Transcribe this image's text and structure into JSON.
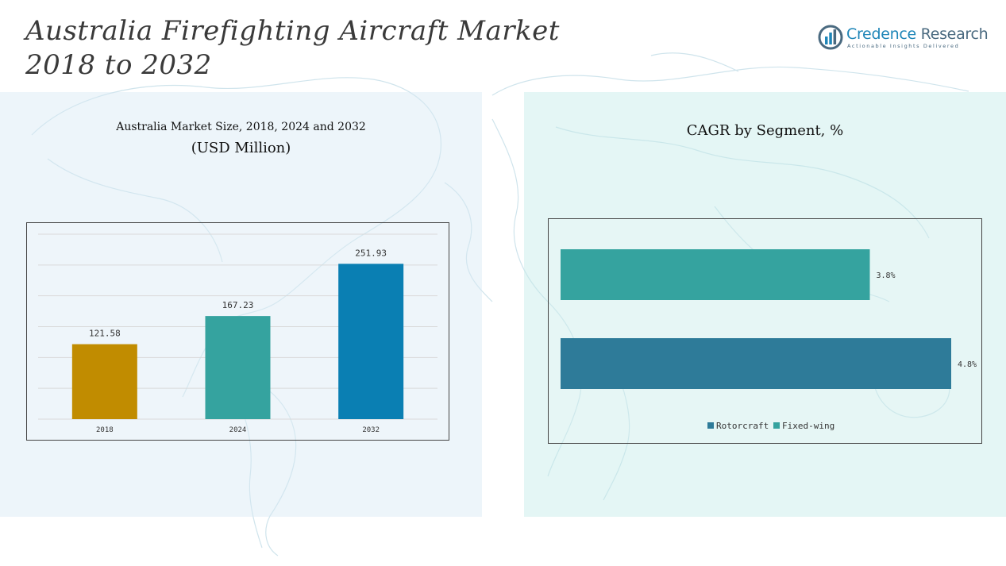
{
  "title": {
    "line1": "Australia Firefighting Aircraft Market",
    "line2": "2018 to 2032"
  },
  "logo": {
    "name_part1": "Credence",
    "name_part2": "Research",
    "tagline": "Actionable Insights Delivered",
    "colors": {
      "primary": "#1f86b8",
      "secondary": "#4a6a80"
    }
  },
  "left_panel": {
    "title_line1": "Australia Market Size, 2018, 2024 and 2032",
    "title_line2": "(USD Million)"
  },
  "right_panel": {
    "title": "CAGR by Segment, %"
  },
  "chart_data": [
    {
      "type": "bar",
      "orientation": "vertical",
      "title": "Australia Market Size, 2018, 2024 and 2032 (USD Million)",
      "categories": [
        "2018",
        "2024",
        "2032"
      ],
      "values": [
        121.58,
        167.23,
        251.93
      ],
      "value_labels": [
        "121.58",
        "167.23",
        "251.93"
      ],
      "colors": [
        "#c18c00",
        "#35a39f",
        "#0a7fb3"
      ],
      "ylim": [
        0,
        300
      ],
      "grid": true,
      "legend": "none"
    },
    {
      "type": "bar",
      "orientation": "horizontal",
      "title": "CAGR by Segment, %",
      "categories": [
        "Fixed-wing",
        "Rotorcraft"
      ],
      "values": [
        3.8,
        4.8
      ],
      "value_labels": [
        "3.8%",
        "4.8%"
      ],
      "colors": [
        "#35a39f",
        "#2e7b99"
      ],
      "xlim": [
        0,
        5
      ],
      "grid": false,
      "legend": "bottom-center",
      "legend_items": [
        {
          "name": "Rotorcraft",
          "color": "#2e7b99"
        },
        {
          "name": "Fixed-wing",
          "color": "#35a39f"
        }
      ]
    }
  ]
}
